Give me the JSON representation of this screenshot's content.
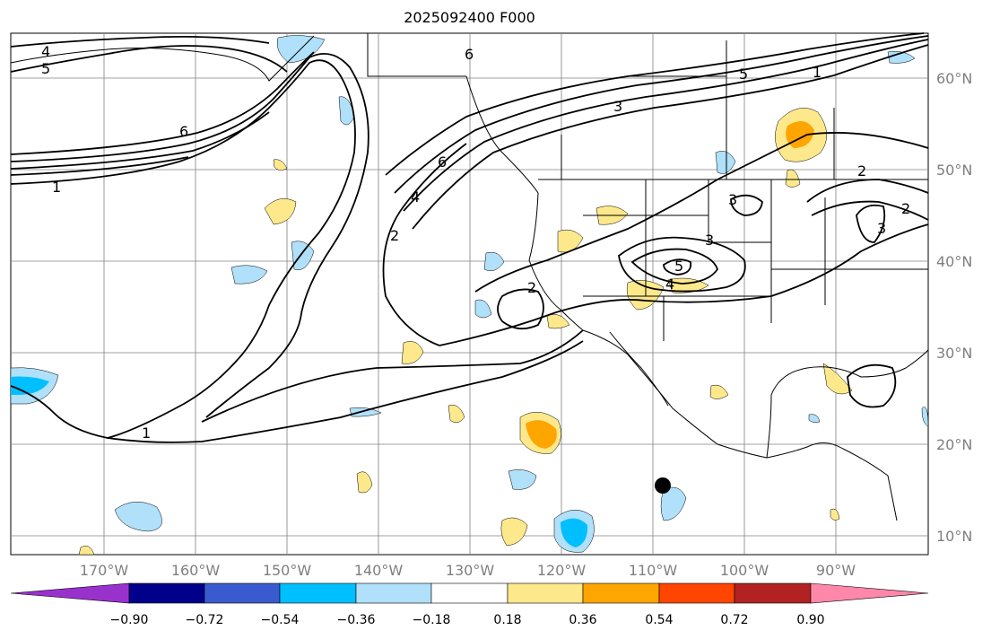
{
  "map": {
    "title": "2025092400 F000",
    "lat_labels": [
      "60°N",
      "50°N",
      "40°N",
      "30°N",
      "20°N",
      "10°N"
    ],
    "lon_labels": [
      "170°W",
      "160°W",
      "150°W",
      "140°W",
      "130°W",
      "120°W",
      "110°W",
      "100°W",
      "90°W"
    ],
    "contour_labels": [
      "4",
      "5",
      "6",
      "1",
      "6",
      "5",
      "1",
      "3",
      "6",
      "4",
      "2",
      "2",
      "3",
      "2",
      "3",
      "3",
      "5",
      "4",
      "2",
      "1"
    ]
  },
  "colorbar": {
    "ticks": [
      "−0.90",
      "−0.72",
      "−0.54",
      "−0.36",
      "−0.18",
      "0.18",
      "0.36",
      "0.54",
      "0.72",
      "0.90"
    ],
    "colors": [
      "#9932cc",
      "#00008b",
      "#3a5bcf",
      "#00bfff",
      "#b0e0fa",
      "#ffffff",
      "#fde98b",
      "#ffa500",
      "#ff4500",
      "#b22222",
      "#ff88aa"
    ]
  }
}
